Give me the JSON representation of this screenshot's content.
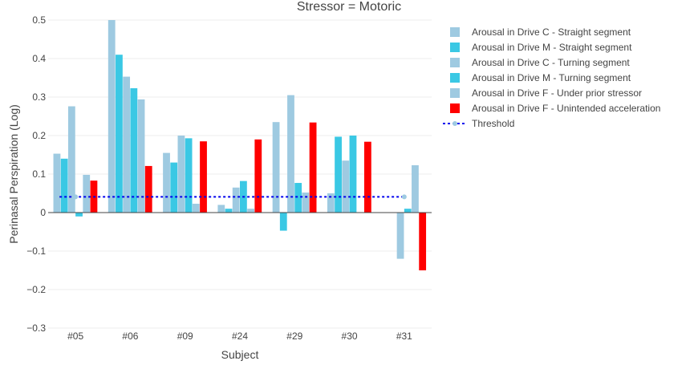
{
  "chart_data": {
    "type": "bar",
    "title": "Stressor = Motoric",
    "xlabel": "Subject",
    "ylabel": "Perinasal Perspiration (Log)",
    "ylim": [
      -0.3,
      0.5
    ],
    "yticks": [
      -0.3,
      -0.2,
      -0.1,
      0,
      0.1,
      0.2,
      0.3,
      0.4,
      0.5
    ],
    "ytick_labels": [
      "−0.3",
      "−0.2",
      "−0.1",
      "0",
      "0.1",
      "0.2",
      "0.3",
      "0.4",
      "0.5"
    ],
    "grid": true,
    "legend_position": "right",
    "categories": [
      "#05",
      "#06",
      "#09",
      "#24",
      "#29",
      "#30",
      "#31"
    ],
    "series": [
      {
        "name": "Arousal in Drive C - Straight segment",
        "color": "#9ecae1",
        "values": [
          0.153,
          0.5,
          0.155,
          0.02,
          0.235,
          0.05,
          0
        ]
      },
      {
        "name": "Arousal in Drive M - Straight segment",
        "color": "#3ac8e4",
        "values": [
          0.14,
          0.41,
          0.13,
          0.01,
          -0.047,
          0.197,
          0
        ]
      },
      {
        "name": "Arousal in Drive C - Turning segment",
        "color": "#9ecae1",
        "values": [
          0.276,
          0.353,
          0.2,
          0.065,
          0.305,
          0.135,
          -0.12
        ]
      },
      {
        "name": "Arousal in Drive M - Turning segment",
        "color": "#3ac8e4",
        "values": [
          -0.01,
          0.323,
          0.193,
          0.082,
          0.077,
          0.2,
          0.01
        ]
      },
      {
        "name": "Arousal in Drive F - Under prior stressor",
        "color": "#9ecae1",
        "values": [
          0.098,
          0.294,
          0.023,
          0.01,
          0.052,
          0,
          0.123
        ]
      },
      {
        "name": "Arousal in Drive F - Unintended acceleration",
        "color": "#ff0000",
        "values": [
          0.083,
          0.121,
          0.185,
          0.19,
          0.234,
          0.184,
          -0.15
        ]
      }
    ],
    "threshold": {
      "name": "Threshold",
      "value": 0.041,
      "color": "#0000ee",
      "marker_color": "#9ecae1"
    }
  }
}
